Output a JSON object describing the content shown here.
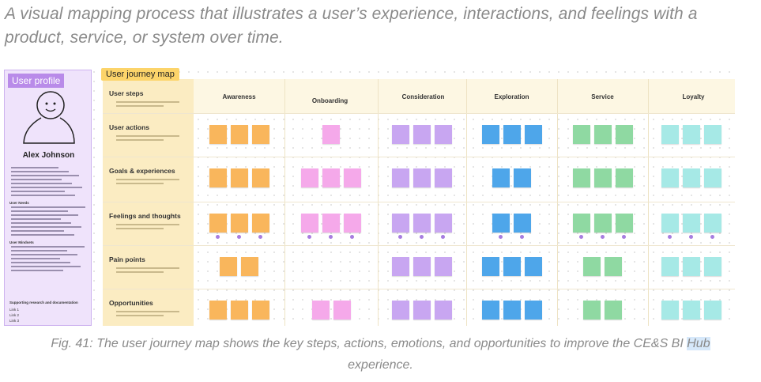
{
  "intro": {
    "line1": "A visual mapping process that illustrates a user’s experience, interactions, and feelings with a",
    "line2": "product, service, or system over time."
  },
  "profile": {
    "label": "User profile",
    "name": "Alex Johnson",
    "needs_heading": "User Needs",
    "mindsets_heading": "User Mindsets",
    "research_heading": "Supporting research and documentation",
    "links": [
      "Link 1",
      "Link 2",
      "Link 3"
    ]
  },
  "map": {
    "title": "User journey map",
    "stages": [
      "Awareness",
      "Onboarding",
      "Consideration",
      "Exploration",
      "Service",
      "Loyalty"
    ],
    "rows": [
      "User steps",
      "User actions",
      "Goals & experiences",
      "Feelings and thoughts",
      "Pain points",
      "Opportunities"
    ]
  },
  "caption": {
    "line1_text": "Fig. 41: The user journey map shows the key steps, actions, emotions, and opportunities to improve the CE&S BI",
    "highlight": "Hub",
    "line2": "experience."
  }
}
